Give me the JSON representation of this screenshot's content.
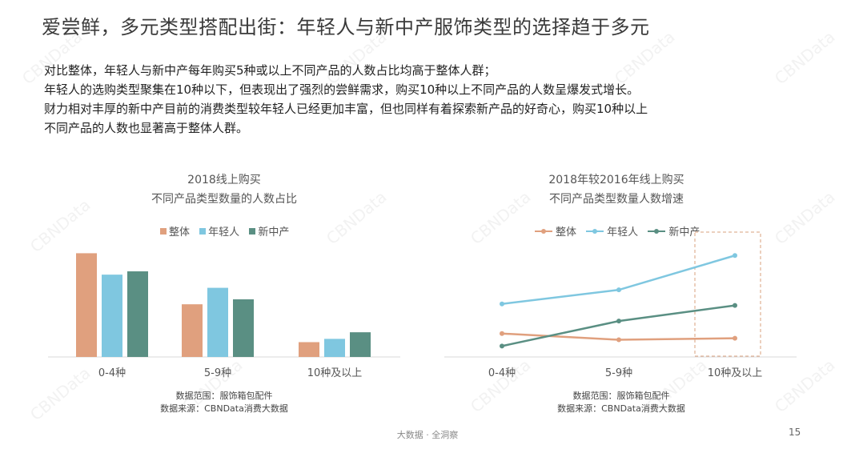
{
  "title": "爱尝鲜，多元类型搭配出街：年轻人与新中产服饰类型的选择趋于多元",
  "intro": [
    "对比整体，年轻人与新中产每年购买5种或以上不同产品的人数占比均高于整体人群；",
    "年轻人的选购类型聚集在10种以下，但表现出了强烈的尝鲜需求，购买10种以上不同产品的人数呈爆发式增长。",
    "财力相对丰厚的新中产目前的消费类型较年轻人已经更加丰富，但也同样有着探索新产品的好奇心，购买10种以上",
    "不同产品的人数也显著高于整体人群。"
  ],
  "watermark_text": "CBNData",
  "colors": {
    "overall": "#E0A07E",
    "young": "#7FC7E0",
    "middle": "#5A8F83",
    "highlight": "#D9A07E"
  },
  "chart_data": [
    {
      "type": "bar",
      "title": "2018线上购买",
      "subtitle": "不同产品类型数量的人数占比",
      "categories": [
        "0-4种",
        "5-9种",
        "10种及以上"
      ],
      "series": [
        {
          "name": "整体",
          "values": [
            63,
            32,
            9
          ]
        },
        {
          "name": "年轻人",
          "values": [
            50,
            42,
            11
          ]
        },
        {
          "name": "新中产",
          "values": [
            52,
            35,
            15
          ]
        }
      ],
      "ylim": [
        0,
        70
      ],
      "legend": "top",
      "notes": [
        "数据范围：服饰箱包配件",
        "数据来源：CBNData消费大数据"
      ]
    },
    {
      "type": "line",
      "title": "2018年较2016年线上购买",
      "subtitle": "不同产品类型数量人数增速",
      "categories": [
        "0-4种",
        "5-9种",
        "10种及以上"
      ],
      "series": [
        {
          "name": "整体",
          "values": [
            15,
            11,
            12
          ]
        },
        {
          "name": "年轻人",
          "values": [
            34,
            43,
            65
          ]
        },
        {
          "name": "新中产",
          "values": [
            7,
            23,
            33
          ]
        }
      ],
      "ylim": [
        0,
        80
      ],
      "highlight_category": "10种及以上",
      "legend": "top",
      "notes": [
        "数据范围：服饰箱包配件",
        "数据来源：CBNData消费大数据"
      ]
    }
  ],
  "footer": {
    "tagline": "大数据 · 全洞察",
    "page": "15"
  }
}
